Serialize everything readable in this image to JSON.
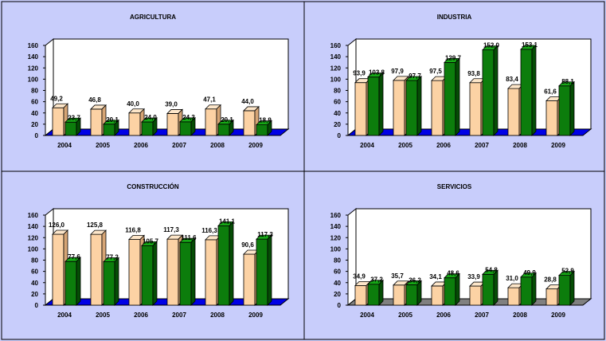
{
  "colors": {
    "background": "#c8cdfb",
    "panel_border": "#000000",
    "bar_front_orange": "#fcd2a4",
    "bar_top_orange": "#fde6c9",
    "bar_side_orange": "#d6a575",
    "bar_front_green": "#0c7d0c",
    "bar_top_green": "#16a816",
    "bar_side_green": "#054d05",
    "floor_blue": "#0000e6",
    "floor_gray": "#808080"
  },
  "chart_data": [
    {
      "type": "bar",
      "title": "AGRICULTURA",
      "categories": [
        "2004",
        "2005",
        "2006",
        "2007",
        "2008",
        "2009"
      ],
      "ylim": [
        0,
        160
      ],
      "yticks": [
        "0",
        "20",
        "40",
        "60",
        "80",
        "100",
        "120",
        "140",
        "160"
      ],
      "series": [
        {
          "values": [
            49.2,
            46.8,
            40.0,
            39.0,
            47.1,
            44.0
          ],
          "labels": [
            "49,2",
            "46,8",
            "40,0",
            "39,0",
            "47,1",
            "44,0"
          ],
          "color": "#fcd2a4"
        },
        {
          "values": [
            23.7,
            20.1,
            24.0,
            24.3,
            20.1,
            18.9
          ],
          "labels": [
            "23,7",
            "20,1",
            "24,0",
            "24,3",
            "20,1",
            "18,9"
          ],
          "color": "#0c7d0c"
        }
      ],
      "floor": "blue"
    },
    {
      "type": "bar",
      "title": "INDUSTRIA",
      "categories": [
        "2004",
        "2005",
        "2006",
        "2007",
        "2008",
        "2009"
      ],
      "ylim": [
        0,
        160
      ],
      "yticks": [
        "0",
        "20",
        "40",
        "60",
        "80",
        "100",
        "120",
        "140",
        "160"
      ],
      "series": [
        {
          "values": [
            93.9,
            97.9,
            97.5,
            93.8,
            83.4,
            61.6
          ],
          "labels": [
            "93,9",
            "97,9",
            "97,5",
            "93,8",
            "83,4",
            "61,6"
          ],
          "color": "#fcd2a4"
        },
        {
          "values": [
            103.8,
            97.7,
            129.7,
            152.0,
            153.1,
            88.1
          ],
          "labels": [
            "103,8",
            "97,7",
            "129,7",
            "152,0",
            "153,1",
            "88,1"
          ],
          "color": "#0c7d0c"
        }
      ],
      "floor": "blue"
    },
    {
      "type": "bar",
      "title": "CONSTRUCCIÓN",
      "categories": [
        "2004",
        "2005",
        "2006",
        "2007",
        "2008",
        "2009"
      ],
      "ylim": [
        0,
        160
      ],
      "yticks": [
        "0",
        "20",
        "40",
        "60",
        "80",
        "100",
        "120",
        "140",
        "160"
      ],
      "series": [
        {
          "values": [
            126.0,
            125.8,
            116.8,
            117.3,
            116.3,
            90.6
          ],
          "labels": [
            "126,0",
            "125,8",
            "116,8",
            "117,3",
            "116,3",
            "90,6"
          ],
          "color": "#fcd2a4"
        },
        {
          "values": [
            77.6,
            77.2,
            105.7,
            111.6,
            141.1,
            117.3
          ],
          "labels": [
            "77,6",
            "77,2",
            "105,7",
            "111,6",
            "141,1",
            "117,3"
          ],
          "color": "#0c7d0c"
        }
      ],
      "floor": "blue"
    },
    {
      "type": "bar",
      "title": "SERVICIOS",
      "categories": [
        "2004",
        "2005",
        "2006",
        "2007",
        "2008",
        "2009"
      ],
      "ylim": [
        0,
        160
      ],
      "yticks": [
        "0",
        "20",
        "40",
        "60",
        "80",
        "100",
        "120",
        "140",
        "160"
      ],
      "series": [
        {
          "values": [
            34.9,
            35.7,
            34.1,
            33.9,
            31.0,
            28.8
          ],
          "labels": [
            "34,9",
            "35,7",
            "34,1",
            "33,9",
            "31,0",
            "28,8"
          ],
          "color": "#fcd2a4"
        },
        {
          "values": [
            37.2,
            36.2,
            48.6,
            54.8,
            49.9,
            52.9
          ],
          "labels": [
            "37,2",
            "36,2",
            "48,6",
            "54,8",
            "49,9",
            "52,9"
          ],
          "color": "#0c7d0c"
        }
      ],
      "floor": "gray"
    }
  ]
}
